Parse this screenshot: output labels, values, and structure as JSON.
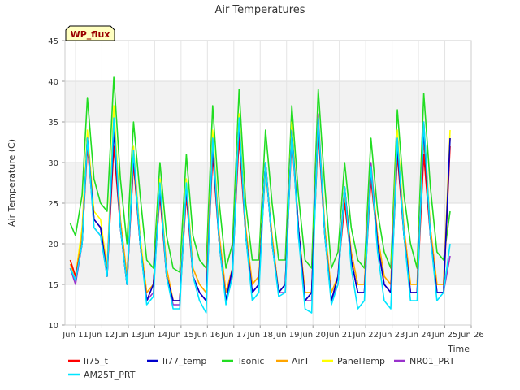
{
  "chart_data": {
    "type": "line",
    "title": "Air Temperatures",
    "xlabel": "Time",
    "ylabel": "Air Temperature (C)",
    "xlim": [
      10.6,
      26
    ],
    "ylim": [
      10,
      45
    ],
    "x_ticks": [
      11,
      12,
      13,
      14,
      15,
      16,
      17,
      18,
      19,
      20,
      21,
      22,
      23,
      24,
      25,
      26
    ],
    "x_tick_labels": [
      "Jun 11",
      "Jun 12",
      "Jun 13",
      "Jun 14",
      "Jun 15",
      "Jun 16",
      "Jun 17",
      "Jun 18",
      "Jun 19",
      "Jun 20",
      "Jun 21",
      "Jun 22",
      "Jun 23",
      "Jun 24",
      "Jun 25",
      "Jun 26"
    ],
    "y_ticks": [
      10,
      15,
      20,
      25,
      30,
      35,
      40,
      45
    ],
    "grid": true,
    "banded_background": true,
    "site_badge": "WP_flux",
    "legend_position": "bottom",
    "series": [
      {
        "name": "li75_t",
        "color": "#ff0000",
        "x": [
          10.8,
          11.0,
          11.25,
          11.45,
          11.7,
          11.95,
          12.2,
          12.45,
          12.7,
          12.95,
          13.2,
          13.45,
          13.7,
          13.95,
          14.2,
          14.45,
          14.7,
          14.95,
          15.2,
          15.45,
          15.7,
          15.95,
          16.2,
          16.45,
          16.7,
          16.95,
          17.2,
          17.45,
          17.7,
          17.95,
          18.2,
          18.45,
          18.7,
          18.95,
          19.2,
          19.45,
          19.7,
          19.95,
          20.2,
          20.45,
          20.7,
          20.95,
          21.2,
          21.45,
          21.7,
          21.95,
          22.2,
          22.45,
          22.7,
          22.95,
          23.2,
          23.45,
          23.7,
          23.95,
          24.2,
          24.45,
          24.7,
          24.95,
          25.2
        ],
        "y": [
          18,
          16,
          20,
          32,
          23,
          22,
          16,
          32,
          22,
          15,
          30,
          20,
          13,
          15,
          26,
          16,
          13,
          13,
          26,
          16,
          14,
          13,
          31,
          20,
          13,
          17,
          33,
          21,
          14,
          15,
          30,
          20,
          14,
          15,
          33,
          22,
          13,
          14,
          34,
          21,
          13,
          16,
          25,
          18,
          14,
          14,
          28,
          20,
          15,
          14,
          31,
          21,
          14,
          14,
          31,
          21,
          14,
          14,
          32
        ]
      },
      {
        "name": "li77_temp",
        "color": "#0000cc",
        "x": [
          10.8,
          11.0,
          11.25,
          11.45,
          11.7,
          11.95,
          12.2,
          12.45,
          12.7,
          12.95,
          13.2,
          13.45,
          13.7,
          13.95,
          14.2,
          14.45,
          14.7,
          14.95,
          15.2,
          15.45,
          15.7,
          15.95,
          16.2,
          16.45,
          16.7,
          16.95,
          17.2,
          17.45,
          17.7,
          17.95,
          18.2,
          18.45,
          18.7,
          18.95,
          19.2,
          19.45,
          19.7,
          19.95,
          20.2,
          20.45,
          20.7,
          20.95,
          21.2,
          21.45,
          21.7,
          21.95,
          22.2,
          22.45,
          22.7,
          22.95,
          23.2,
          23.45,
          23.7,
          23.95,
          24.2,
          24.45,
          24.7,
          24.95,
          25.2
        ],
        "y": [
          17,
          15.5,
          20,
          33,
          23,
          22,
          16,
          34,
          22,
          15,
          31,
          20,
          13,
          15,
          27,
          16,
          13,
          13,
          27,
          16,
          14,
          13,
          32,
          20,
          13,
          17,
          35,
          21,
          14,
          15,
          30,
          20,
          14,
          15,
          34,
          22,
          13,
          14,
          35,
          21,
          13,
          16,
          27,
          18,
          14,
          14,
          29,
          20,
          15,
          14,
          32,
          21,
          14,
          14,
          34,
          21,
          14,
          14,
          33
        ]
      },
      {
        "name": "Tsonic",
        "color": "#22dd22",
        "x": [
          10.8,
          11.0,
          11.25,
          11.45,
          11.7,
          11.95,
          12.2,
          12.45,
          12.7,
          12.95,
          13.2,
          13.45,
          13.7,
          13.95,
          14.2,
          14.45,
          14.7,
          14.95,
          15.2,
          15.45,
          15.7,
          15.95,
          16.2,
          16.45,
          16.7,
          16.95,
          17.2,
          17.45,
          17.7,
          17.95,
          18.2,
          18.45,
          18.7,
          18.95,
          19.2,
          19.45,
          19.7,
          19.95,
          20.2,
          20.45,
          20.7,
          20.95,
          21.2,
          21.45,
          21.7,
          21.95,
          22.2,
          22.45,
          22.7,
          22.95,
          23.2,
          23.45,
          23.7,
          23.95,
          24.2,
          24.45,
          24.7,
          24.95,
          25.2
        ],
        "y": [
          22.5,
          21,
          26,
          38,
          28,
          25,
          24,
          40.5,
          28,
          20,
          35,
          26,
          18,
          17,
          30,
          21,
          17,
          16.5,
          31,
          21,
          18,
          17,
          37,
          25,
          17,
          20,
          39,
          25,
          18,
          18,
          34,
          25,
          18,
          18,
          37,
          26,
          18,
          17,
          39,
          27,
          17,
          19,
          30,
          22,
          18,
          17,
          33,
          24,
          19,
          17,
          36.5,
          26,
          20,
          17,
          38.5,
          27,
          19,
          18,
          24
        ]
      },
      {
        "name": "AirT",
        "color": "#ffa500",
        "x": [
          10.8,
          11.0,
          11.25,
          11.45,
          11.7,
          11.95,
          12.2,
          12.45,
          12.7,
          12.95,
          13.2,
          13.45,
          13.7,
          13.95,
          14.2,
          14.45,
          14.7,
          14.95,
          15.2,
          15.45,
          15.7,
          15.95,
          16.2,
          16.45,
          16.7,
          16.95,
          17.2,
          17.45,
          17.7,
          17.95,
          18.2,
          18.45,
          18.7,
          18.95,
          19.2,
          19.45,
          19.7,
          19.95,
          20.2,
          20.45,
          20.7,
          20.95,
          21.2,
          21.45,
          21.7,
          21.95,
          22.2,
          22.45,
          22.7,
          22.95,
          23.2,
          23.45,
          23.7,
          23.95,
          24.2,
          24.45,
          24.7,
          24.95,
          25.2
        ],
        "y": [
          17.5,
          16,
          21,
          33,
          23,
          22,
          17,
          35,
          23,
          16,
          30,
          20,
          14,
          15,
          27,
          17,
          13,
          13,
          27,
          17,
          15,
          14,
          33,
          21,
          14,
          17,
          34,
          22,
          15,
          16,
          29,
          21,
          14,
          15,
          34,
          22,
          14,
          14,
          34,
          22,
          14,
          16,
          26,
          19,
          15,
          15,
          29,
          21,
          16,
          15,
          32,
          22,
          15,
          15,
          33,
          22,
          15,
          15,
          33
        ]
      },
      {
        "name": "PanelTemp",
        "color": "#ffff00",
        "x": [
          10.8,
          11.0,
          11.25,
          11.45,
          11.7,
          11.95,
          12.2,
          12.45,
          12.7,
          12.95,
          13.2,
          13.45,
          13.7,
          13.95,
          14.2,
          14.45,
          14.7,
          14.95,
          15.2,
          15.45,
          15.7,
          15.95,
          16.2,
          16.45,
          16.7,
          16.95,
          17.2,
          17.45,
          17.7,
          17.95,
          18.2,
          18.45,
          18.7,
          18.95,
          19.2,
          19.45,
          19.7,
          19.95,
          20.2,
          20.45,
          20.7,
          20.95,
          21.2,
          21.45,
          21.7,
          21.95,
          22.2,
          22.45,
          22.7,
          22.95,
          23.2,
          23.45,
          23.7,
          23.95,
          24.2,
          24.45,
          24.7,
          24.95,
          25.2
        ],
        "y": [
          18,
          16,
          22,
          34,
          24,
          23,
          17,
          37,
          23,
          16,
          32,
          21,
          14,
          15,
          28,
          17,
          13,
          13,
          28,
          17,
          15,
          14,
          34,
          21,
          14,
          17,
          36,
          22,
          15,
          16,
          30,
          21,
          14,
          15,
          35,
          22,
          14,
          14,
          36,
          22,
          14,
          16,
          27,
          19,
          15,
          15,
          30,
          21,
          16,
          15,
          34,
          22,
          15,
          15,
          35,
          22,
          15,
          15,
          34
        ]
      },
      {
        "name": "NR01_PRT",
        "color": "#9932cc",
        "x": [
          10.8,
          11.0,
          11.25,
          11.45,
          11.7,
          11.95,
          12.2,
          12.45,
          12.7,
          12.95,
          13.2,
          13.45,
          13.7,
          13.95,
          14.2,
          14.45,
          14.7,
          14.95,
          15.2,
          15.45,
          15.7,
          15.95,
          16.2,
          16.45,
          16.7,
          16.95,
          17.2,
          17.45,
          17.7,
          17.95,
          18.2,
          18.45,
          18.7,
          18.95,
          19.2,
          19.45,
          19.7,
          19.95,
          20.2,
          20.45,
          20.7,
          20.95,
          21.2,
          21.45,
          21.7,
          21.95,
          22.2,
          22.45,
          22.7,
          22.95,
          23.2,
          23.45,
          23.7,
          23.95,
          24.2,
          24.45,
          24.7,
          24.95,
          25.2
        ],
        "y": [
          17,
          15,
          20,
          33,
          22,
          21,
          16,
          35,
          22,
          15,
          31,
          20,
          13,
          14,
          27,
          16,
          12.5,
          12.5,
          27,
          16,
          14,
          13,
          33,
          20,
          13,
          16,
          35,
          21,
          14,
          15,
          30,
          20,
          14,
          14,
          34,
          21,
          13,
          13,
          36,
          21,
          13,
          15,
          27,
          18,
          14,
          14,
          30,
          20,
          15,
          14,
          33,
          21,
          14,
          14,
          35,
          21,
          14,
          14,
          18.5
        ]
      },
      {
        "name": "AM25T_PRT",
        "color": "#00e5ff",
        "x": [
          10.8,
          11.0,
          11.25,
          11.45,
          11.7,
          11.95,
          12.2,
          12.45,
          12.7,
          12.95,
          13.2,
          13.45,
          13.7,
          13.95,
          14.2,
          14.45,
          14.7,
          14.95,
          15.2,
          15.45,
          15.7,
          15.95,
          16.2,
          16.45,
          16.7,
          16.95,
          17.2,
          17.45,
          17.7,
          17.95,
          18.2,
          18.45,
          18.7,
          18.95,
          19.2,
          19.45,
          19.7,
          19.95,
          20.2,
          20.45,
          20.7,
          20.95,
          21.2,
          21.45,
          21.7,
          21.95,
          22.2,
          22.45,
          22.7,
          22.95,
          23.2,
          23.45,
          23.7,
          23.95,
          24.2,
          24.45,
          24.7,
          24.95,
          25.2
        ],
        "y": [
          17,
          15.5,
          20,
          33,
          22,
          21,
          16,
          35.5,
          22,
          15,
          31.5,
          20,
          12.5,
          13.5,
          27.5,
          16,
          12,
          12,
          27.5,
          16,
          13,
          11.5,
          33,
          20,
          12.5,
          16,
          35.5,
          21,
          13,
          14,
          30,
          20,
          13.5,
          14,
          34,
          21,
          12,
          11.5,
          35.5,
          21,
          12.5,
          15,
          27,
          17,
          12,
          13,
          29.5,
          19,
          13,
          12,
          33,
          21,
          13,
          13,
          35,
          21,
          13,
          14,
          20
        ]
      }
    ]
  }
}
